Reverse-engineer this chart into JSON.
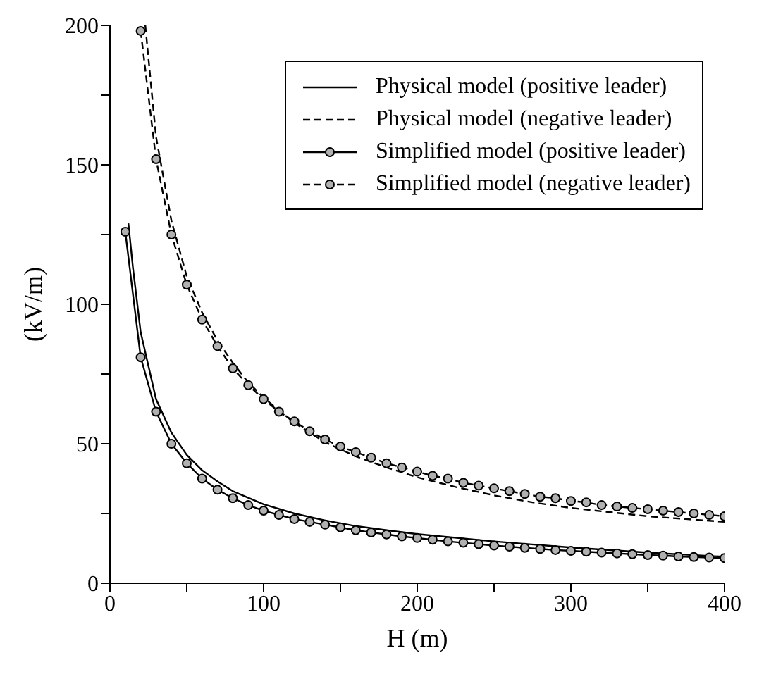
{
  "chart_data": {
    "type": "line",
    "xlabel": "H (m)",
    "ylabel": "(kV/m)",
    "xlim": [
      0,
      400
    ],
    "xticks": [
      0,
      {
        "value": 50,
        "label": null
      },
      100,
      {
        "value": 150,
        "label": null
      },
      200,
      {
        "value": 250,
        "label": null
      },
      300,
      {
        "value": 350,
        "label": null
      },
      400
    ],
    "ylim": [
      0,
      200
    ],
    "yticks": [
      0,
      {
        "value": 25,
        "label": null
      },
      50,
      {
        "value": 75,
        "label": null
      },
      100,
      {
        "value": 125,
        "label": null
      },
      150,
      {
        "value": 175,
        "label": null
      },
      200
    ],
    "grid": false,
    "legend": "top right",
    "series": [
      {
        "name": "Physical model (positive leader)",
        "color": "#000000",
        "line_style": "solid",
        "marker": "none",
        "x": [
          12,
          15,
          20,
          30,
          40,
          50,
          60,
          70,
          80,
          100,
          120,
          140,
          160,
          180,
          200,
          250,
          300,
          350,
          400
        ],
        "values": [
          129,
          113,
          90,
          66,
          54,
          46,
          40.5,
          36.5,
          33,
          28.3,
          25,
          22.5,
          20.5,
          19,
          17.6,
          15,
          12.8,
          11,
          9.5
        ]
      },
      {
        "name": "Physical model (negative leader)",
        "color": "#000000",
        "line_style": "dashed",
        "marker": "none",
        "x": [
          23,
          30,
          40,
          50,
          60,
          70,
          80,
          90,
          100,
          120,
          140,
          160,
          180,
          200,
          225,
          250,
          275,
          300,
          325,
          350,
          375,
          400
        ],
        "values": [
          200,
          160,
          130,
          110,
          97,
          87,
          79,
          72,
          66.5,
          57.5,
          50.5,
          45.5,
          41.5,
          38,
          34.5,
          31.5,
          29,
          27,
          25.5,
          24,
          23,
          22
        ]
      },
      {
        "name": "Simplified model (positive leader)",
        "color": "#000000",
        "line_style": "solid",
        "marker": "circle",
        "x": [
          10,
          20,
          30,
          40,
          50,
          60,
          70,
          80,
          90,
          100,
          110,
          120,
          130,
          140,
          150,
          160,
          170,
          180,
          190,
          200,
          210,
          220,
          230,
          240,
          250,
          260,
          270,
          280,
          290,
          300,
          310,
          320,
          330,
          340,
          350,
          360,
          370,
          380,
          390,
          400
        ],
        "values": [
          126,
          81,
          61.5,
          50,
          43,
          37.5,
          33.5,
          30.5,
          28,
          26,
          24.5,
          23,
          22,
          21,
          20,
          19,
          18.2,
          17.5,
          16.8,
          16.2,
          15.6,
          15,
          14.5,
          14,
          13.5,
          13.1,
          12.7,
          12.3,
          11.9,
          11.6,
          11.3,
          11,
          10.7,
          10.4,
          10.1,
          9.9,
          9.6,
          9.4,
          9.2,
          9
        ]
      },
      {
        "name": "Simplified model (negative leader)",
        "color": "#000000",
        "line_style": "dashed",
        "marker": "circle",
        "x": [
          20,
          30,
          40,
          50,
          60,
          70,
          80,
          90,
          100,
          110,
          120,
          130,
          140,
          150,
          160,
          170,
          180,
          190,
          200,
          210,
          220,
          230,
          240,
          250,
          260,
          270,
          280,
          290,
          300,
          310,
          320,
          330,
          340,
          350,
          360,
          370,
          380,
          390,
          400
        ],
        "values": [
          198,
          152,
          125,
          107,
          94.5,
          85,
          77,
          71,
          66,
          61.5,
          58,
          54.5,
          51.5,
          49,
          47,
          45,
          43,
          41.5,
          40,
          38.5,
          37.5,
          36,
          35,
          34,
          33,
          32,
          31,
          30.5,
          29.5,
          29,
          28,
          27.5,
          27,
          26.5,
          26,
          25.5,
          25,
          24.5,
          24
        ]
      }
    ]
  }
}
